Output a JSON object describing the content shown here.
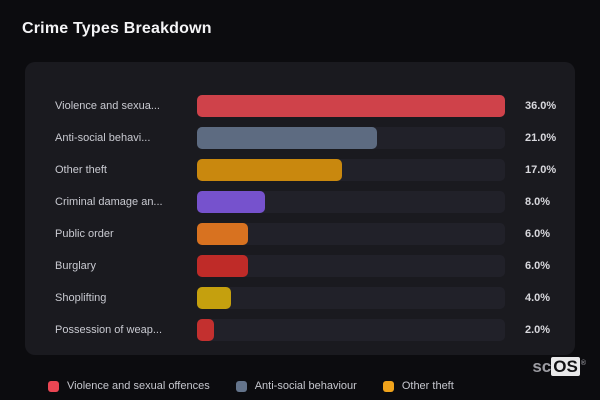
{
  "header": {
    "title": "Crime Types Breakdown"
  },
  "colors": {
    "page_background": "#0c0c0f",
    "card_background": "#1a1a1f",
    "bar_track": "#212129",
    "title_text": "#f4f4f6",
    "label_text": "#c9cad1",
    "value_text": "#d8d8dd"
  },
  "chart_data": {
    "type": "bar",
    "orientation": "horizontal",
    "title": "Crime Types Breakdown",
    "unit": "%",
    "xlim": [
      0,
      36
    ],
    "grid": false,
    "legend_position": "bottom",
    "rows": [
      {
        "label": "Violence and sexua...",
        "value": 36.0,
        "display": "36.0%",
        "color": "#cf424a"
      },
      {
        "label": "Anti-social behavi...",
        "value": 21.0,
        "display": "21.0%",
        "color": "#5d6b81"
      },
      {
        "label": "Other theft",
        "value": 17.0,
        "display": "17.0%",
        "color": "#c9880e"
      },
      {
        "label": "Criminal damage an...",
        "value": 8.0,
        "display": "8.0%",
        "color": "#7652cd"
      },
      {
        "label": "Public order",
        "value": 6.0,
        "display": "6.0%",
        "color": "#d87220"
      },
      {
        "label": "Burglary",
        "value": 6.0,
        "display": "6.0%",
        "color": "#bf2b28"
      },
      {
        "label": "Shoplifting",
        "value": 4.0,
        "display": "4.0%",
        "color": "#c5a00e"
      },
      {
        "label": "Possession of weap...",
        "value": 2.0,
        "display": "2.0%",
        "color": "#c3302f"
      }
    ]
  },
  "legend": {
    "items": [
      {
        "label": "Violence and sexual offences",
        "color": "#ea4653"
      },
      {
        "label": "Anti-social behaviour",
        "color": "#64748b"
      },
      {
        "label": "Other theft",
        "color": "#f0a31b"
      }
    ]
  },
  "logo": {
    "prefix": "sc",
    "suffix": "OS",
    "registered": "®"
  }
}
